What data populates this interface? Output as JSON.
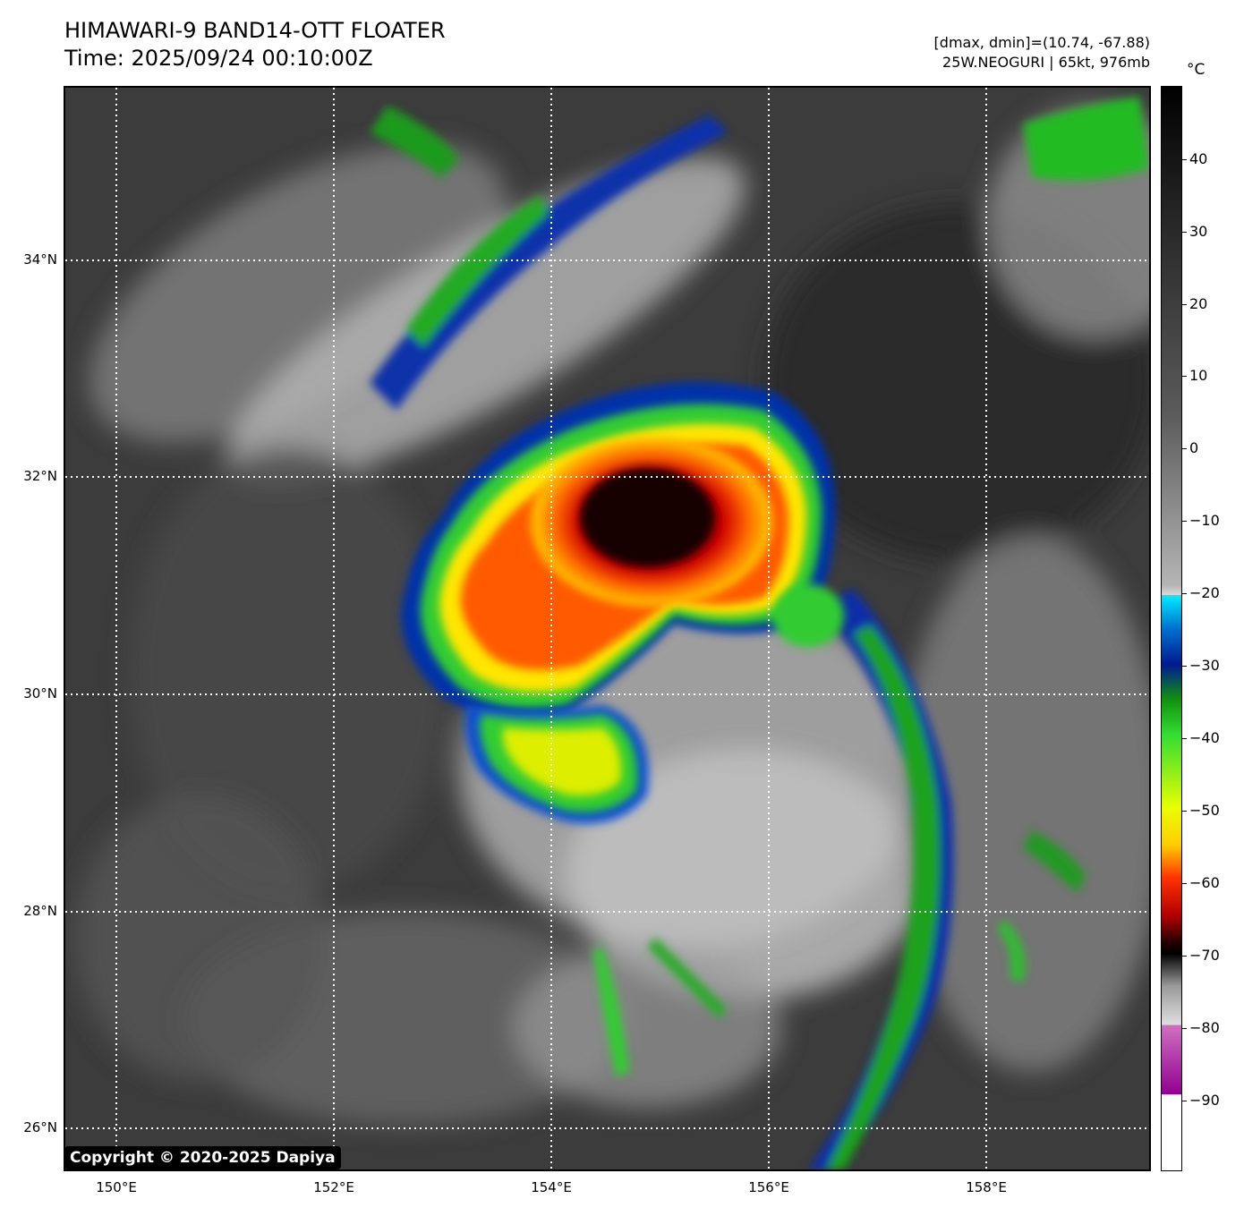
{
  "header": {
    "title_line1": "HIMAWARI-9 BAND14-OTT FLOATER",
    "title_line2": "Time: 2025/09/24 00:10:00Z",
    "info_line1": "[dmax, dmin]=(10.74, -67.88)",
    "info_line2": "25W.NEOGURI | 65kt, 976mb"
  },
  "map": {
    "latitude_labels": [
      "34°N",
      "32°N",
      "30°N",
      "28°N",
      "26°N"
    ],
    "longitude_labels": [
      "150°E",
      "152°E",
      "154°E",
      "156°E",
      "158°E"
    ],
    "copyright": "Copyright © 2020-2025 Dapiya"
  },
  "colorbar": {
    "unit": "°C",
    "ticks": [
      "40",
      "30",
      "20",
      "10",
      "0",
      "−10",
      "−20",
      "−30",
      "−40",
      "−50",
      "−60",
      "−70",
      "−80",
      "−90"
    ]
  }
}
